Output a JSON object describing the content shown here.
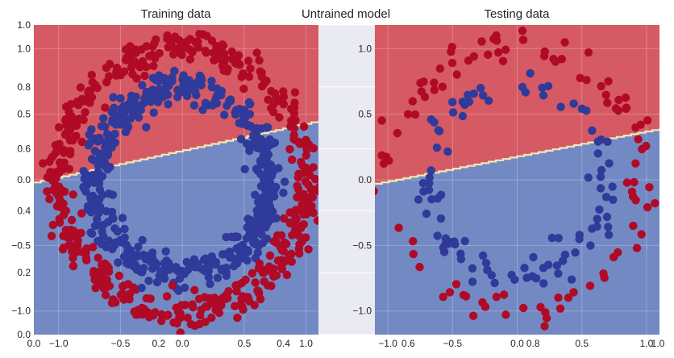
{
  "figure": {
    "suptitle": "Untrained model",
    "background_axes": {
      "x_ticks": [
        "0.0",
        "0.2",
        "0.4",
        "0.6",
        "0.8",
        "1.0"
      ],
      "y_ticks": [
        "1.0",
        "0.8",
        "0.6",
        "0.4",
        "0.2",
        "0.0"
      ]
    }
  },
  "colors": {
    "red_region": "#d55a63",
    "blue_region": "#7389c3",
    "red_point": "#b00a26",
    "blue_point": "#2f3a9a",
    "boundary": "#f0e8b8",
    "panel_bg": "#eaeaf2",
    "grid": "#ffffff"
  },
  "chart_data": [
    {
      "type": "scatter",
      "title": "Training data",
      "xlim": [
        -1.2,
        1.1
      ],
      "ylim": [
        -1.18,
        1.18
      ],
      "x_ticks": [
        -1.0,
        -0.5,
        0.0,
        0.5,
        1.0
      ],
      "y_ticks": [
        1.0,
        0.5,
        0.0,
        -0.5,
        -1.0
      ],
      "x_tick_labels": [
        "−1.0",
        "−0.5",
        "0.0",
        "0.5",
        "1.0"
      ],
      "y_tick_labels": [
        "1.0",
        "0.5",
        "0.0",
        "−0.5",
        "−1.0"
      ],
      "decision_boundary": {
        "x": [
          -1.2,
          1.1
        ],
        "y": [
          -0.02,
          0.45
        ]
      },
      "regions": {
        "above": "red",
        "below": "blue"
      },
      "classes": [
        {
          "class": 0,
          "color": "red",
          "shape": "outer ring",
          "radius": 1.0,
          "count": 500
        },
        {
          "class": 1,
          "color": "blue",
          "shape": "inner ring",
          "radius": 0.7,
          "count": 500
        }
      ],
      "grid": true
    },
    {
      "type": "scatter",
      "title": "Testing data",
      "xlim": [
        -1.1,
        1.1
      ],
      "ylim": [
        -1.18,
        1.18
      ],
      "x_ticks": [
        -1.0,
        -0.5,
        0.0,
        0.5,
        1.0
      ],
      "y_ticks": [
        1.0,
        0.5,
        0.0,
        -0.5,
        -1.0
      ],
      "x_tick_labels": [
        "−1.0",
        "−0.5",
        "0.0",
        "0.5",
        "1.0"
      ],
      "y_tick_labels": [
        "1.0",
        "0.5",
        "0.0",
        "−0.5",
        "−1.0"
      ],
      "decision_boundary": {
        "x": [
          -1.1,
          1.1
        ],
        "y": [
          -0.03,
          0.39
        ]
      },
      "regions": {
        "above": "red",
        "below": "blue"
      },
      "classes": [
        {
          "class": 0,
          "color": "red",
          "shape": "outer ring",
          "radius": 1.0,
          "count": 100
        },
        {
          "class": 1,
          "color": "blue",
          "shape": "inner ring",
          "radius": 0.7,
          "count": 100
        }
      ],
      "grid": true
    }
  ]
}
